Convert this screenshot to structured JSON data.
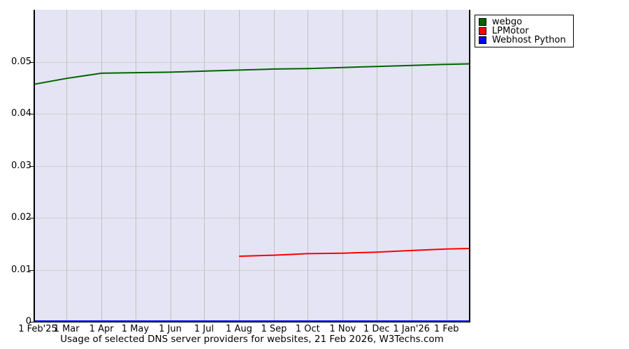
{
  "chart_data": {
    "type": "line",
    "title": "Usage of selected DNS server providers for websites, 21 Feb 2026, W3Techs.com",
    "legend_position": "top-right",
    "grid": true,
    "colors": {
      "plot_bg": "#e4e4f4",
      "grid_h": "#cfcfcf",
      "grid_v": "#c0c0c0",
      "axis": "#000000",
      "legend_bg": "#ffffff"
    },
    "x_axis": {
      "range_days": [
        0,
        385
      ],
      "ticks": [
        {
          "day": 0,
          "label": "1 Feb'25"
        },
        {
          "day": 28,
          "label": "1 Mar"
        },
        {
          "day": 59,
          "label": "1 Apr"
        },
        {
          "day": 89,
          "label": "1 May"
        },
        {
          "day": 120,
          "label": "1 Jun"
        },
        {
          "day": 150,
          "label": "1 Jul"
        },
        {
          "day": 181,
          "label": "1 Aug"
        },
        {
          "day": 212,
          "label": "1 Sep"
        },
        {
          "day": 242,
          "label": "1 Oct"
        },
        {
          "day": 273,
          "label": "1 Nov"
        },
        {
          "day": 303,
          "label": "1 Dec"
        },
        {
          "day": 334,
          "label": "1 Jan'26"
        },
        {
          "day": 365,
          "label": "1 Feb"
        }
      ]
    },
    "y_axis": {
      "range": [
        0,
        0.06
      ],
      "ticks": [
        {
          "value": 0,
          "label": "0"
        },
        {
          "value": 0.01,
          "label": "0.01"
        },
        {
          "value": 0.02,
          "label": "0.02"
        },
        {
          "value": 0.03,
          "label": "0.03"
        },
        {
          "value": 0.04,
          "label": "0.04"
        },
        {
          "value": 0.05,
          "label": "0.05"
        }
      ]
    },
    "series": [
      {
        "name": "webgo",
        "color": "#006400",
        "points": [
          [
            0,
            0.0457
          ],
          [
            28,
            0.0468
          ],
          [
            59,
            0.0478
          ],
          [
            89,
            0.0479
          ],
          [
            120,
            0.048
          ],
          [
            150,
            0.0482
          ],
          [
            181,
            0.0484
          ],
          [
            212,
            0.0486
          ],
          [
            242,
            0.0487
          ],
          [
            273,
            0.0489
          ],
          [
            303,
            0.0491
          ],
          [
            334,
            0.0493
          ],
          [
            365,
            0.0495
          ],
          [
            385,
            0.0496
          ]
        ]
      },
      {
        "name": "LPMotor",
        "color": "#ff0000",
        "points": [
          [
            181,
            0.0126
          ],
          [
            212,
            0.0128
          ],
          [
            242,
            0.0131
          ],
          [
            273,
            0.0132
          ],
          [
            303,
            0.0134
          ],
          [
            334,
            0.0137
          ],
          [
            365,
            0.014
          ],
          [
            385,
            0.0141
          ]
        ]
      },
      {
        "name": "Webhost Python",
        "color": "#0000ff",
        "points": [
          [
            0,
            0
          ],
          [
            385,
            0
          ]
        ]
      }
    ]
  }
}
